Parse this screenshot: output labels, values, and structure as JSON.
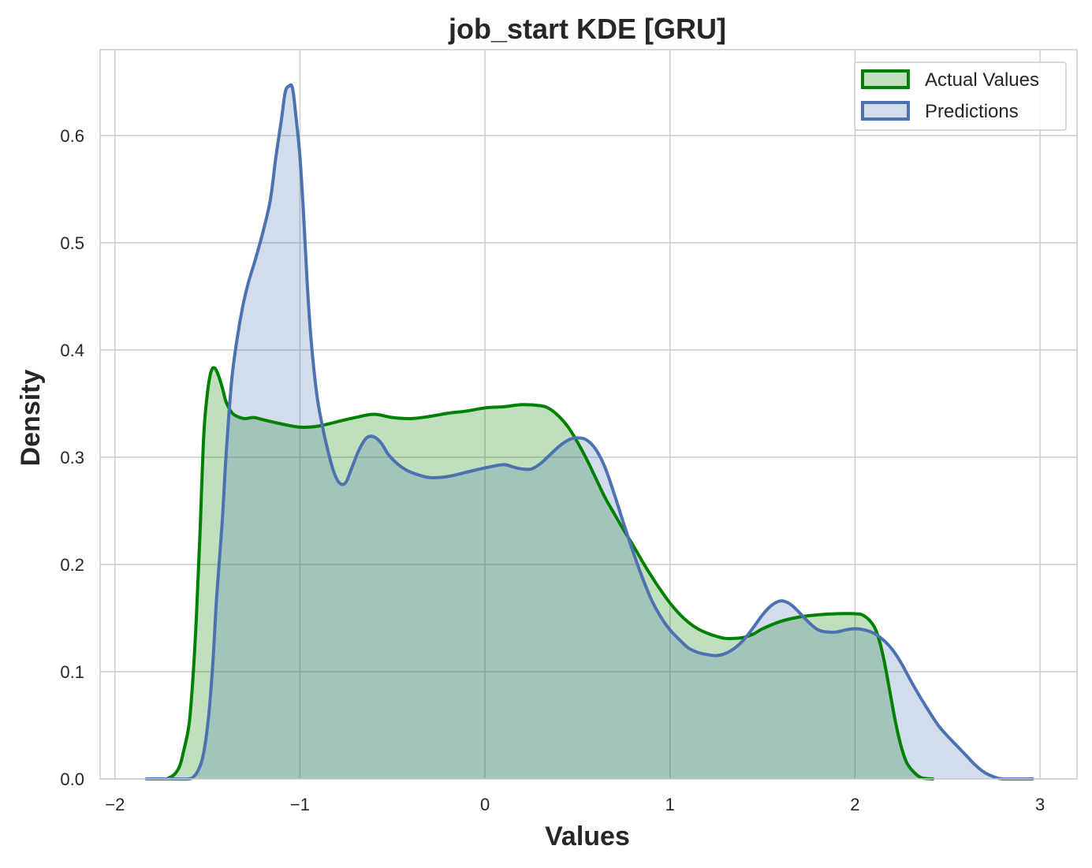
{
  "chart_data": {
    "type": "area",
    "title": "job_start KDE [GRU]",
    "xlabel": "Values",
    "ylabel": "Density",
    "xlim": [
      -2.08,
      3.2
    ],
    "ylim": [
      0,
      0.68
    ],
    "x_ticks": [
      -2,
      -1,
      0,
      1,
      2,
      3
    ],
    "x_tick_labels": [
      "−2",
      "−1",
      "0",
      "1",
      "2",
      "3"
    ],
    "y_ticks": [
      0.0,
      0.1,
      0.2,
      0.3,
      0.4,
      0.5,
      0.6
    ],
    "y_tick_labels": [
      "0.0",
      "0.1",
      "0.2",
      "0.3",
      "0.4",
      "0.5",
      "0.6"
    ],
    "grid": true,
    "legend_position": "top-right",
    "series": [
      {
        "name": "Actual Values",
        "color": "#008000",
        "fill": "#008000",
        "fill_opacity": 0.25,
        "points": [
          [
            -1.72,
            0.0
          ],
          [
            -1.68,
            0.004
          ],
          [
            -1.65,
            0.012
          ],
          [
            -1.63,
            0.025
          ],
          [
            -1.6,
            0.05
          ],
          [
            -1.58,
            0.09
          ],
          [
            -1.56,
            0.15
          ],
          [
            -1.54,
            0.23
          ],
          [
            -1.52,
            0.32
          ],
          [
            -1.5,
            0.36
          ],
          [
            -1.48,
            0.38
          ],
          [
            -1.46,
            0.383
          ],
          [
            -1.44,
            0.376
          ],
          [
            -1.42,
            0.365
          ],
          [
            -1.4,
            0.352
          ],
          [
            -1.37,
            0.342
          ],
          [
            -1.34,
            0.338
          ],
          [
            -1.3,
            0.336
          ],
          [
            -1.25,
            0.337
          ],
          [
            -1.2,
            0.335
          ],
          [
            -1.1,
            0.331
          ],
          [
            -1.0,
            0.328
          ],
          [
            -0.9,
            0.329
          ],
          [
            -0.8,
            0.333
          ],
          [
            -0.7,
            0.337
          ],
          [
            -0.6,
            0.34
          ],
          [
            -0.5,
            0.337
          ],
          [
            -0.4,
            0.336
          ],
          [
            -0.3,
            0.338
          ],
          [
            -0.2,
            0.341
          ],
          [
            -0.1,
            0.343
          ],
          [
            0.0,
            0.346
          ],
          [
            0.1,
            0.347
          ],
          [
            0.2,
            0.349
          ],
          [
            0.3,
            0.348
          ],
          [
            0.35,
            0.345
          ],
          [
            0.4,
            0.338
          ],
          [
            0.45,
            0.328
          ],
          [
            0.5,
            0.314
          ],
          [
            0.55,
            0.298
          ],
          [
            0.6,
            0.28
          ],
          [
            0.65,
            0.262
          ],
          [
            0.7,
            0.247
          ],
          [
            0.75,
            0.232
          ],
          [
            0.8,
            0.218
          ],
          [
            0.85,
            0.203
          ],
          [
            0.9,
            0.189
          ],
          [
            0.95,
            0.176
          ],
          [
            1.0,
            0.164
          ],
          [
            1.05,
            0.154
          ],
          [
            1.1,
            0.146
          ],
          [
            1.15,
            0.14
          ],
          [
            1.2,
            0.136
          ],
          [
            1.25,
            0.133
          ],
          [
            1.3,
            0.131
          ],
          [
            1.35,
            0.131
          ],
          [
            1.4,
            0.132
          ],
          [
            1.45,
            0.135
          ],
          [
            1.5,
            0.14
          ],
          [
            1.6,
            0.147
          ],
          [
            1.7,
            0.151
          ],
          [
            1.8,
            0.153
          ],
          [
            1.9,
            0.154
          ],
          [
            2.0,
            0.154
          ],
          [
            2.05,
            0.152
          ],
          [
            2.1,
            0.143
          ],
          [
            2.13,
            0.13
          ],
          [
            2.16,
            0.108
          ],
          [
            2.19,
            0.08
          ],
          [
            2.22,
            0.052
          ],
          [
            2.25,
            0.03
          ],
          [
            2.28,
            0.015
          ],
          [
            2.32,
            0.006
          ],
          [
            2.36,
            0.001
          ],
          [
            2.42,
            0.0
          ]
        ]
      },
      {
        "name": "Predictions",
        "color": "#4c72b0",
        "fill": "#4c72b0",
        "fill_opacity": 0.25,
        "points": [
          [
            -1.83,
            0.0
          ],
          [
            -1.7,
            0.0
          ],
          [
            -1.6,
            0.0
          ],
          [
            -1.57,
            0.003
          ],
          [
            -1.55,
            0.008
          ],
          [
            -1.53,
            0.017
          ],
          [
            -1.51,
            0.035
          ],
          [
            -1.49,
            0.065
          ],
          [
            -1.47,
            0.11
          ],
          [
            -1.45,
            0.17
          ],
          [
            -1.42,
            0.24
          ],
          [
            -1.4,
            0.3
          ],
          [
            -1.37,
            0.37
          ],
          [
            -1.34,
            0.41
          ],
          [
            -1.31,
            0.44
          ],
          [
            -1.28,
            0.462
          ],
          [
            -1.24,
            0.485
          ],
          [
            -1.2,
            0.51
          ],
          [
            -1.16,
            0.54
          ],
          [
            -1.13,
            0.58
          ],
          [
            -1.1,
            0.615
          ],
          [
            -1.08,
            0.64
          ],
          [
            -1.06,
            0.646
          ],
          [
            -1.04,
            0.644
          ],
          [
            -1.02,
            0.615
          ],
          [
            -1.0,
            0.58
          ],
          [
            -0.98,
            0.525
          ],
          [
            -0.96,
            0.46
          ],
          [
            -0.94,
            0.41
          ],
          [
            -0.91,
            0.36
          ],
          [
            -0.88,
            0.33
          ],
          [
            -0.84,
            0.3
          ],
          [
            -0.81,
            0.283
          ],
          [
            -0.78,
            0.275
          ],
          [
            -0.75,
            0.277
          ],
          [
            -0.72,
            0.29
          ],
          [
            -0.68,
            0.307
          ],
          [
            -0.64,
            0.318
          ],
          [
            -0.6,
            0.319
          ],
          [
            -0.56,
            0.313
          ],
          [
            -0.52,
            0.302
          ],
          [
            -0.46,
            0.292
          ],
          [
            -0.4,
            0.286
          ],
          [
            -0.3,
            0.281
          ],
          [
            -0.2,
            0.282
          ],
          [
            -0.1,
            0.286
          ],
          [
            0.0,
            0.29
          ],
          [
            0.1,
            0.293
          ],
          [
            0.15,
            0.291
          ],
          [
            0.2,
            0.289
          ],
          [
            0.25,
            0.289
          ],
          [
            0.3,
            0.294
          ],
          [
            0.35,
            0.302
          ],
          [
            0.4,
            0.31
          ],
          [
            0.45,
            0.316
          ],
          [
            0.5,
            0.318
          ],
          [
            0.55,
            0.316
          ],
          [
            0.6,
            0.307
          ],
          [
            0.65,
            0.29
          ],
          [
            0.7,
            0.265
          ],
          [
            0.75,
            0.238
          ],
          [
            0.8,
            0.212
          ],
          [
            0.85,
            0.188
          ],
          [
            0.9,
            0.167
          ],
          [
            0.95,
            0.151
          ],
          [
            1.0,
            0.139
          ],
          [
            1.05,
            0.13
          ],
          [
            1.1,
            0.122
          ],
          [
            1.15,
            0.118
          ],
          [
            1.2,
            0.116
          ],
          [
            1.25,
            0.115
          ],
          [
            1.3,
            0.117
          ],
          [
            1.35,
            0.122
          ],
          [
            1.4,
            0.13
          ],
          [
            1.45,
            0.141
          ],
          [
            1.5,
            0.153
          ],
          [
            1.55,
            0.162
          ],
          [
            1.6,
            0.166
          ],
          [
            1.65,
            0.163
          ],
          [
            1.7,
            0.155
          ],
          [
            1.75,
            0.146
          ],
          [
            1.8,
            0.139
          ],
          [
            1.85,
            0.137
          ],
          [
            1.9,
            0.137
          ],
          [
            1.95,
            0.139
          ],
          [
            2.0,
            0.14
          ],
          [
            2.05,
            0.139
          ],
          [
            2.1,
            0.136
          ],
          [
            2.15,
            0.13
          ],
          [
            2.2,
            0.121
          ],
          [
            2.25,
            0.108
          ],
          [
            2.3,
            0.092
          ],
          [
            2.35,
            0.077
          ],
          [
            2.4,
            0.063
          ],
          [
            2.45,
            0.05
          ],
          [
            2.5,
            0.04
          ],
          [
            2.55,
            0.031
          ],
          [
            2.6,
            0.022
          ],
          [
            2.65,
            0.013
          ],
          [
            2.7,
            0.006
          ],
          [
            2.75,
            0.002
          ],
          [
            2.8,
            0.0
          ],
          [
            2.96,
            0.0
          ]
        ]
      }
    ]
  }
}
